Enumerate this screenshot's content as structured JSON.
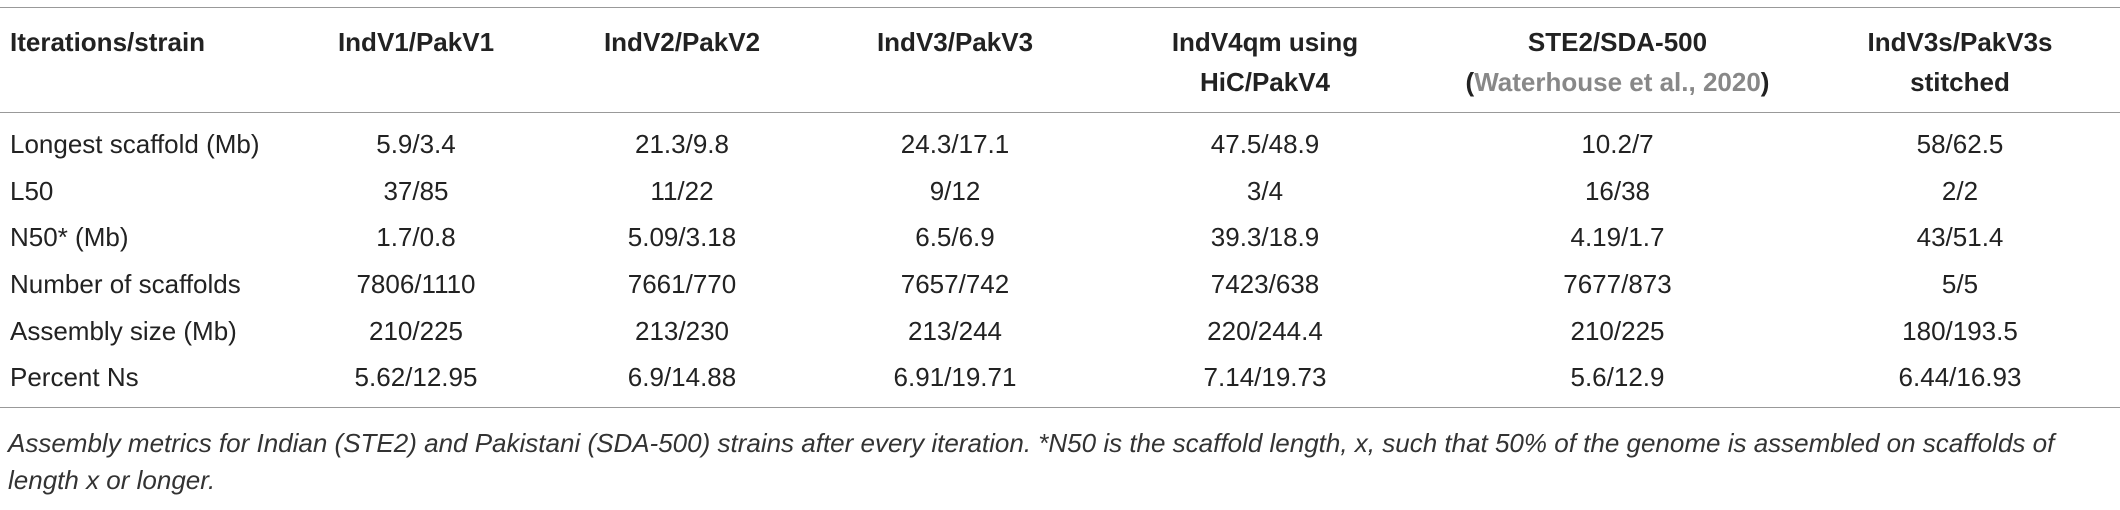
{
  "table": {
    "header": [
      {
        "lines": [
          "Iterations/strain"
        ]
      },
      {
        "lines": [
          "IndV1/PakV1"
        ]
      },
      {
        "lines": [
          "IndV2/PakV2"
        ]
      },
      {
        "lines": [
          "IndV3/PakV3"
        ]
      },
      {
        "lines": [
          "IndV4qm using",
          "HiC/PakV4"
        ]
      },
      {
        "lines": [
          "STE2/SDA-500"
        ],
        "citation_open": "(",
        "citation": "Waterhouse et al., 2020",
        "citation_close": ")"
      },
      {
        "lines": [
          "IndV3s/PakV3s",
          "stitched"
        ]
      }
    ],
    "rows": [
      [
        "Longest scaffold (Mb)",
        "5.9/3.4",
        "21.3/9.8",
        "24.3/17.1",
        "47.5/48.9",
        "10.2/7",
        "58/62.5"
      ],
      [
        "L50",
        "37/85",
        "11/22",
        "9/12",
        "3/4",
        "16/38",
        "2/2"
      ],
      [
        "N50* (Mb)",
        "1.7/0.8",
        "5.09/3.18",
        "6.5/6.9",
        "39.3/18.9",
        "4.19/1.7",
        "43/51.4"
      ],
      [
        "Number of scaffolds",
        "7806/1110",
        "7661/770",
        "7657/742",
        "7423/638",
        "7677/873",
        "5/5"
      ],
      [
        "Assembly size (Mb)",
        "210/225",
        "213/230",
        "213/244",
        "220/244.4",
        "210/225",
        "180/193.5"
      ],
      [
        "Percent Ns",
        "5.62/12.95",
        "6.9/14.88",
        "6.91/19.71",
        "7.14/19.73",
        "5.6/12.9",
        "6.44/16.93"
      ]
    ],
    "caption": "Assembly metrics for Indian (STE2) and Pakistani (SDA-500) strains after every iteration. *N50 is the scaffold length, x, such that 50% of the genome is assembled on scaffolds of length x or longer."
  }
}
